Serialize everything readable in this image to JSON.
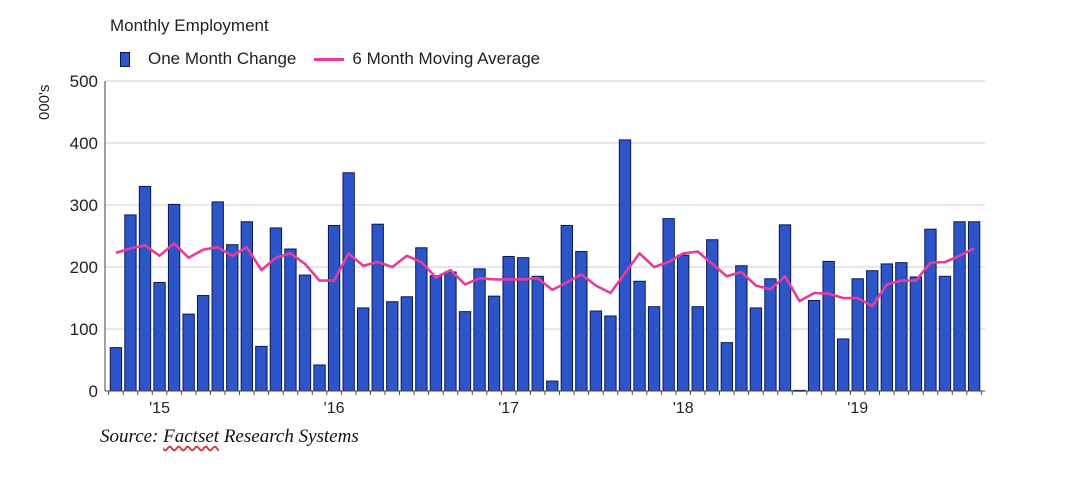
{
  "chart_data": {
    "type": "bar",
    "title": "Monthly Employment",
    "ylabel": "000's",
    "ylim": [
      0,
      500
    ],
    "yticks": [
      0,
      100,
      200,
      300,
      400,
      500
    ],
    "grid": true,
    "legend_position": "top-left",
    "x_tick_labels": [
      "'15",
      "'16",
      "'17",
      "'18",
      "'19"
    ],
    "x_tick_index": [
      3,
      15,
      27,
      39,
      51
    ],
    "series": [
      {
        "name": "One Month Change",
        "kind": "bar",
        "color": "#2d54c8",
        "values": [
          70,
          284,
          330,
          175,
          301,
          124,
          154,
          305,
          236,
          273,
          72,
          263,
          229,
          187,
          42,
          267,
          352,
          134,
          269,
          144,
          152,
          231,
          186,
          192,
          128,
          197,
          153,
          217,
          215,
          185,
          16,
          267,
          225,
          129,
          121,
          405,
          177,
          136,
          278,
          219,
          136,
          244,
          78,
          202,
          134,
          181,
          268,
          1,
          146,
          209,
          84,
          181,
          194,
          205,
          207,
          184,
          261,
          185,
          273,
          273
        ]
      },
      {
        "name": "6 Month Moving Average",
        "kind": "line",
        "color": "#e83b9b",
        "values": [
          223,
          230,
          235,
          218,
          238,
          215,
          228,
          232,
          218,
          232,
          195,
          215,
          222,
          205,
          178,
          178,
          222,
          202,
          208,
          200,
          218,
          208,
          183,
          195,
          172,
          182,
          180,
          180,
          180,
          182,
          163,
          175,
          188,
          170,
          158,
          190,
          222,
          200,
          208,
          222,
          225,
          205,
          185,
          192,
          170,
          164,
          185,
          145,
          158,
          157,
          150,
          150,
          137,
          172,
          178,
          178,
          207,
          208,
          218,
          230
        ]
      }
    ]
  },
  "source": {
    "prefix": "Source: ",
    "underlined": "Factset",
    "suffix": " Research Systems"
  }
}
